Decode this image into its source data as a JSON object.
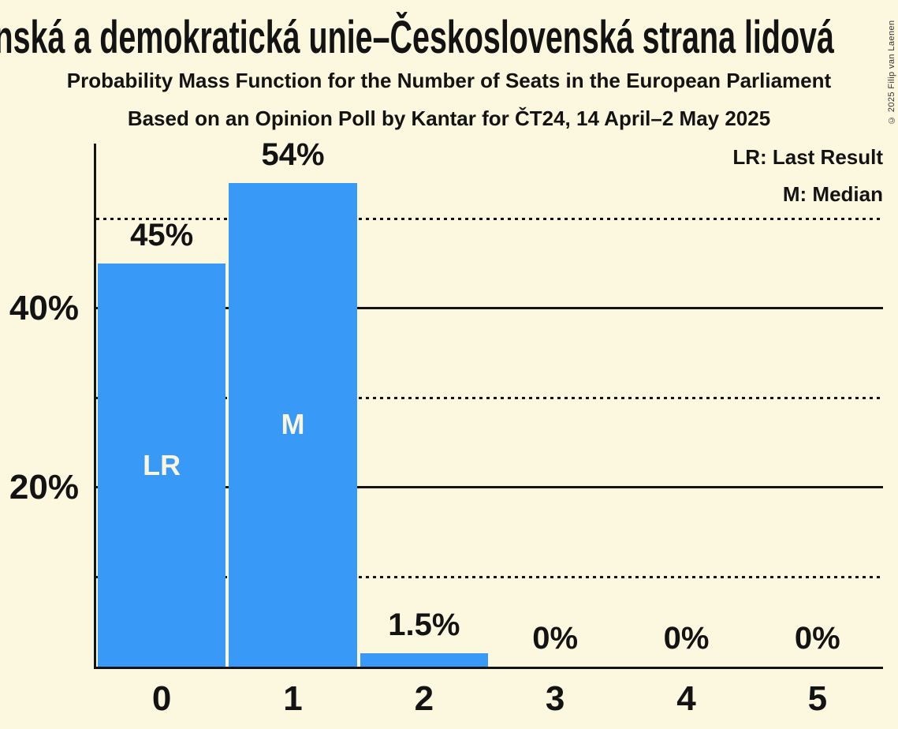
{
  "page": {
    "title": "Křesťanská a demokratická unie–Československá strana lidová",
    "subtitle1": "Probability Mass Function for the Number of Seats in the European Parliament",
    "subtitle2": "Based on an Opinion Poll by Kantar for ČT24, 14 April–2 May 2025",
    "copyright": "© 2025 Filip van Laenen"
  },
  "legend": {
    "lr": "LR: Last Result",
    "m": "M: Median"
  },
  "colors": {
    "background": "#FCF8DF",
    "bar": "#3899F7",
    "text": "#131313",
    "bar_annotation": "#FAF5DC"
  },
  "chart_data": {
    "type": "bar",
    "title": "Probability Mass Function for the Number of Seats in the European Parliament",
    "subtitle": "Based on an Opinion Poll by Kantar for ČT24, 14 April–2 May 2025",
    "categories": [
      "0",
      "1",
      "2",
      "3",
      "4",
      "5"
    ],
    "values": [
      45,
      54,
      1.5,
      0,
      0,
      0
    ],
    "value_labels": [
      "45%",
      "54%",
      "1.5%",
      "0%",
      "0%",
      "0%"
    ],
    "bar_annotations": [
      "LR",
      "M",
      "",
      "",
      "",
      ""
    ],
    "yticks": [
      {
        "value": 40,
        "label": "40%"
      },
      {
        "value": 20,
        "label": "20%"
      }
    ],
    "gridlines_solid": [
      20,
      40
    ],
    "gridlines_dotted": [
      10,
      30,
      50
    ],
    "ylim": [
      0,
      58.4
    ],
    "grid": true,
    "legend_position": "top-right",
    "legend": [
      "LR: Last Result",
      "M: Median"
    ]
  }
}
